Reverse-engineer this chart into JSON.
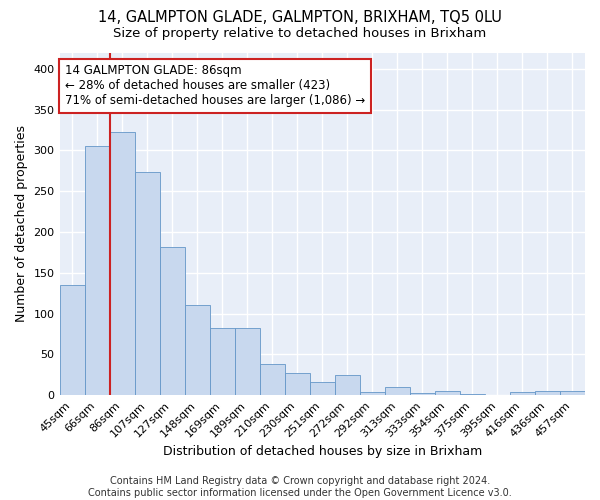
{
  "title": "14, GALMPTON GLADE, GALMPTON, BRIXHAM, TQ5 0LU",
  "subtitle": "Size of property relative to detached houses in Brixham",
  "xlabel": "Distribution of detached houses by size in Brixham",
  "ylabel": "Number of detached properties",
  "categories": [
    "45sqm",
    "66sqm",
    "86sqm",
    "107sqm",
    "127sqm",
    "148sqm",
    "169sqm",
    "189sqm",
    "210sqm",
    "230sqm",
    "251sqm",
    "272sqm",
    "292sqm",
    "313sqm",
    "333sqm",
    "354sqm",
    "375sqm",
    "395sqm",
    "416sqm",
    "436sqm",
    "457sqm"
  ],
  "values": [
    135,
    305,
    323,
    273,
    181,
    111,
    82,
    82,
    38,
    27,
    16,
    25,
    4,
    10,
    3,
    5,
    1,
    0,
    4,
    5,
    5
  ],
  "bar_color": "#c8d8ee",
  "bar_edge_color": "#6496c8",
  "highlight_index": 2,
  "highlight_color": "#cc2222",
  "annotation_text": "14 GALMPTON GLADE: 86sqm\n← 28% of detached houses are smaller (423)\n71% of semi-detached houses are larger (1,086) →",
  "annotation_box_color": "#ffffff",
  "annotation_box_edge": "#cc2222",
  "ylim": [
    0,
    420
  ],
  "yticks": [
    0,
    50,
    100,
    150,
    200,
    250,
    300,
    350,
    400
  ],
  "fig_background": "#ffffff",
  "ax_background": "#e8eef8",
  "grid_color": "#ffffff",
  "footer_text": "Contains HM Land Registry data © Crown copyright and database right 2024.\nContains public sector information licensed under the Open Government Licence v3.0.",
  "title_fontsize": 10.5,
  "subtitle_fontsize": 9.5,
  "xlabel_fontsize": 9,
  "ylabel_fontsize": 9,
  "tick_fontsize": 8,
  "annotation_fontsize": 8.5,
  "footer_fontsize": 7
}
